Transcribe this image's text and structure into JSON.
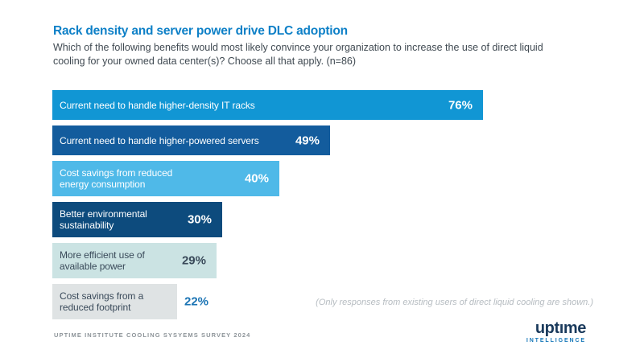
{
  "chart_data": {
    "type": "bar",
    "orientation": "horizontal",
    "title": "Rack density and server power drive DLC adoption",
    "subtitle": "Which of the following benefits would most likely convince your organization to increase the use of direct liquid\ncooling for your owned data center(s)? Choose all that apply. (n=86)",
    "unit": "%",
    "sample_size": 86,
    "xlim": [
      0,
      80
    ],
    "grid": false,
    "legend": "none",
    "bars": [
      {
        "label": "Current need to handle higher-density IT racks",
        "value": 76,
        "display": "76%",
        "bar_color": "#1196D4",
        "label_color": "#FFFFFF",
        "value_color": "#FFFFFF",
        "value_position": "inside"
      },
      {
        "label": "Current need to handle higher-powered servers",
        "value": 49,
        "display": "49%",
        "bar_color": "#135C9D",
        "label_color": "#FFFFFF",
        "value_color": "#FFFFFF",
        "value_position": "inside"
      },
      {
        "label": "Cost savings from reduced\nenergy consumption",
        "value": 40,
        "display": "40%",
        "bar_color": "#4FB9E8",
        "label_color": "#FFFFFF",
        "value_color": "#FFFFFF",
        "value_position": "inside"
      },
      {
        "label": "Better environmental\nsustainability",
        "value": 30,
        "display": "30%",
        "bar_color": "#0D4B7D",
        "label_color": "#FFFFFF",
        "value_color": "#FFFFFF",
        "value_position": "inside"
      },
      {
        "label": "More efficient use of\navailable power",
        "value": 29,
        "display": "29%",
        "bar_color": "#CBE3E3",
        "label_color": "#3A4A5A",
        "value_color": "#3A4A5A",
        "value_position": "inside"
      },
      {
        "label": "Cost savings from a\nreduced footprint",
        "value": 22,
        "display": "22%",
        "bar_color": "#DFE3E4",
        "label_color": "#3A4A5A",
        "value_color": "#1B74B4",
        "value_position": "outside"
      }
    ],
    "note": "(Only responses from existing users of direct liquid cooling are shown.)",
    "source": "UPTIME INSTITUTE COOLING SYSYEMS SURVEY 2024"
  },
  "logo": {
    "wordmark": "uptıme",
    "subbrand": "INTELLIGENCE",
    "wordmark_color": "#1A3A5C",
    "subbrand_color": "#1577B8"
  }
}
